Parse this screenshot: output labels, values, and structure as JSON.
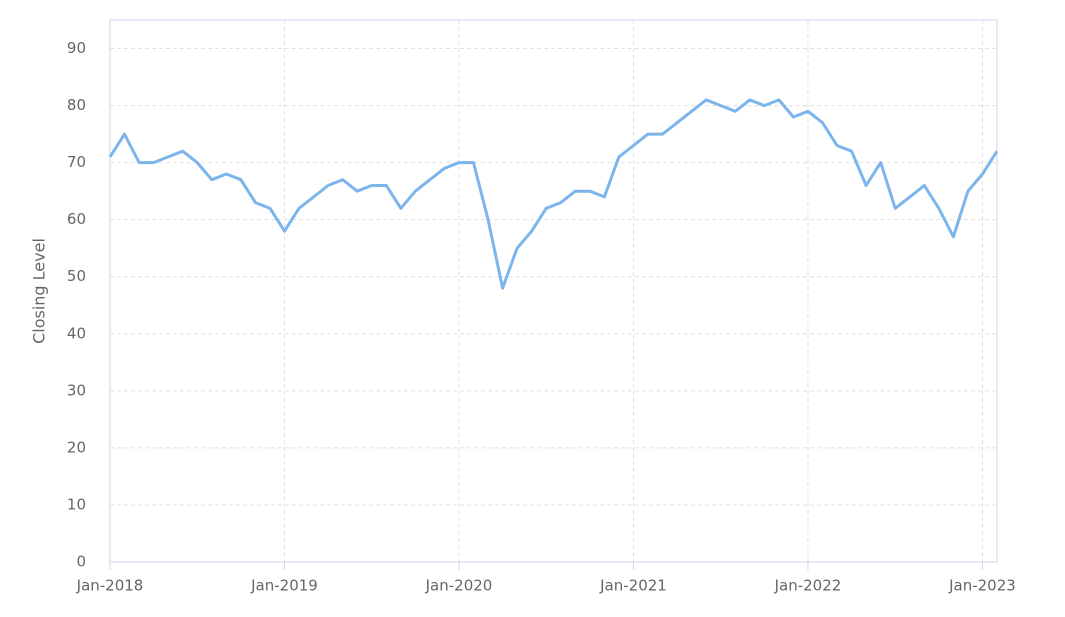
{
  "chart_data": {
    "type": "line",
    "y_label": "Closing Level",
    "x": [
      "2018-01",
      "2018-02",
      "2018-03",
      "2018-04",
      "2018-05",
      "2018-06",
      "2018-07",
      "2018-08",
      "2018-09",
      "2018-10",
      "2018-11",
      "2018-12",
      "2019-01",
      "2019-02",
      "2019-03",
      "2019-04",
      "2019-05",
      "2019-06",
      "2019-07",
      "2019-08",
      "2019-09",
      "2019-10",
      "2019-11",
      "2019-12",
      "2020-01",
      "2020-02",
      "2020-03",
      "2020-04",
      "2020-05",
      "2020-06",
      "2020-07",
      "2020-08",
      "2020-09",
      "2020-10",
      "2020-11",
      "2020-12",
      "2021-01",
      "2021-02",
      "2021-03",
      "2021-04",
      "2021-05",
      "2021-06",
      "2021-07",
      "2021-08",
      "2021-09",
      "2021-10",
      "2021-11",
      "2021-12",
      "2022-01",
      "2022-02",
      "2022-03",
      "2022-04",
      "2022-05",
      "2022-06",
      "2022-07",
      "2022-08",
      "2022-09",
      "2022-10",
      "2022-11",
      "2022-12",
      "2023-01",
      "2023-02"
    ],
    "series": [
      {
        "name": "Closing Level",
        "color": "#7cb5ec",
        "values": [
          71,
          75,
          70,
          70,
          71,
          72,
          70,
          67,
          68,
          67,
          63,
          62,
          58,
          62,
          64,
          66,
          67,
          65,
          66,
          66,
          62,
          65,
          67,
          69,
          70,
          70,
          60,
          48,
          55,
          58,
          62,
          63,
          65,
          65,
          64,
          71,
          73,
          75,
          75,
          77,
          79,
          81,
          80,
          79,
          81,
          80,
          81,
          78,
          79,
          77,
          73,
          72,
          66,
          70,
          62,
          64,
          66,
          62,
          57,
          65,
          68,
          72
        ]
      }
    ],
    "xlim": [
      "2018-01",
      "2023-02"
    ],
    "xticks": [
      {
        "value": "2018-01",
        "label": "Jan-2018"
      },
      {
        "value": "2019-01",
        "label": "Jan-2019"
      },
      {
        "value": "2020-01",
        "label": "Jan-2020"
      },
      {
        "value": "2021-01",
        "label": "Jan-2021"
      },
      {
        "value": "2022-01",
        "label": "Jan-2022"
      },
      {
        "value": "2023-01",
        "label": "Jan-2023"
      }
    ],
    "ylim": [
      0,
      95
    ],
    "yticks": [
      0,
      10,
      20,
      30,
      40,
      50,
      60,
      70,
      80,
      90
    ],
    "grid": true
  }
}
